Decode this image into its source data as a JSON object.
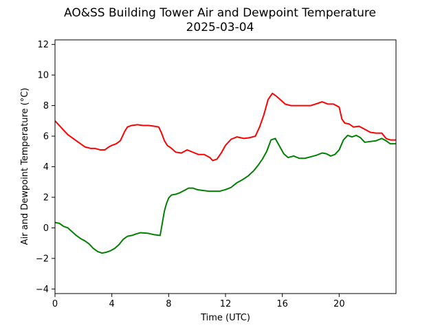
{
  "chart_data": {
    "type": "line",
    "title": "AO&SS Building Tower Air and Dewpoint Temperature",
    "subtitle": "2025-03-04",
    "xlabel": "Time (UTC)",
    "ylabel": "Air and Dewpoint Temperature (°C)",
    "xlim": [
      0,
      24
    ],
    "ylim": [
      -4.3,
      12.3
    ],
    "x_ticks": [
      0,
      4,
      8,
      12,
      16,
      20
    ],
    "y_ticks": [
      -4,
      -2,
      0,
      2,
      4,
      6,
      8,
      10,
      12
    ],
    "grid": false,
    "legend": "none",
    "series": [
      {
        "color": "#ff0000",
        "x": [
          0,
          0.3,
          0.6,
          0.9,
          1.2,
          1.5,
          1.8,
          2.1,
          2.5,
          2.8,
          3.2,
          3.5,
          3.8,
          4.0,
          4.3,
          4.6,
          4.9,
          5.1,
          5.4,
          5.8,
          6.2,
          6.6,
          7.0,
          7.3,
          7.5,
          7.7,
          7.9,
          8.2,
          8.5,
          8.9,
          9.3,
          9.7,
          10.1,
          10.5,
          10.9,
          11.1,
          11.4,
          11.7,
          12.0,
          12.4,
          12.8,
          13.3,
          13.7,
          14.1,
          14.4,
          14.7,
          15.0,
          15.3,
          15.6,
          15.9,
          16.2,
          16.6,
          17.0,
          17.5,
          18.0,
          18.5,
          18.8,
          19.2,
          19.6,
          20.0,
          20.2,
          20.4,
          20.7,
          21.0,
          21.4,
          21.8,
          22.2,
          22.6,
          23.0,
          23.3,
          23.6,
          24.0
        ],
        "y": [
          7.0,
          6.7,
          6.4,
          6.1,
          5.9,
          5.7,
          5.5,
          5.3,
          5.2,
          5.2,
          5.1,
          5.1,
          5.3,
          5.4,
          5.5,
          5.7,
          6.3,
          6.6,
          6.7,
          6.75,
          6.7,
          6.7,
          6.65,
          6.6,
          6.2,
          5.7,
          5.4,
          5.2,
          4.95,
          4.9,
          5.1,
          4.95,
          4.8,
          4.8,
          4.6,
          4.4,
          4.5,
          4.9,
          5.4,
          5.8,
          5.95,
          5.85,
          5.9,
          6.0,
          6.6,
          7.4,
          8.4,
          8.8,
          8.6,
          8.35,
          8.1,
          8.0,
          8.0,
          8.0,
          8.0,
          8.15,
          8.25,
          8.1,
          8.1,
          7.9,
          7.1,
          6.85,
          6.8,
          6.6,
          6.65,
          6.45,
          6.25,
          6.2,
          6.2,
          5.85,
          5.75,
          5.75
        ]
      },
      {
        "color": "#008000",
        "x": [
          0,
          0.3,
          0.6,
          0.9,
          1.2,
          1.5,
          1.8,
          2.1,
          2.4,
          2.7,
          3.0,
          3.3,
          3.6,
          3.9,
          4.2,
          4.5,
          4.8,
          5.1,
          5.4,
          5.7,
          6.0,
          6.5,
          7.0,
          7.4,
          7.55,
          7.7,
          7.85,
          8.0,
          8.2,
          8.5,
          8.8,
          9.1,
          9.4,
          9.7,
          10.0,
          10.4,
          10.8,
          11.2,
          11.6,
          12.0,
          12.4,
          12.8,
          13.2,
          13.6,
          14.0,
          14.3,
          14.6,
          14.9,
          15.2,
          15.5,
          15.8,
          16.1,
          16.4,
          16.8,
          17.2,
          17.6,
          18.0,
          18.4,
          18.8,
          19.1,
          19.4,
          19.7,
          20.0,
          20.3,
          20.6,
          20.9,
          21.2,
          21.5,
          21.8,
          22.2,
          22.6,
          23.0,
          23.3,
          23.6,
          24.0
        ],
        "y": [
          0.35,
          0.3,
          0.1,
          0.0,
          -0.25,
          -0.5,
          -0.7,
          -0.85,
          -1.05,
          -1.35,
          -1.55,
          -1.65,
          -1.6,
          -1.5,
          -1.35,
          -1.1,
          -0.75,
          -0.55,
          -0.5,
          -0.4,
          -0.32,
          -0.35,
          -0.45,
          -0.5,
          0.3,
          1.1,
          1.6,
          1.95,
          2.15,
          2.2,
          2.3,
          2.45,
          2.6,
          2.6,
          2.5,
          2.45,
          2.4,
          2.4,
          2.4,
          2.5,
          2.65,
          2.95,
          3.15,
          3.4,
          3.75,
          4.1,
          4.5,
          5.0,
          5.75,
          5.85,
          5.35,
          4.85,
          4.6,
          4.7,
          4.55,
          4.55,
          4.65,
          4.75,
          4.9,
          4.85,
          4.7,
          4.8,
          5.1,
          5.75,
          6.05,
          5.95,
          6.05,
          5.9,
          5.6,
          5.65,
          5.7,
          5.85,
          5.7,
          5.5,
          5.5
        ]
      }
    ]
  }
}
